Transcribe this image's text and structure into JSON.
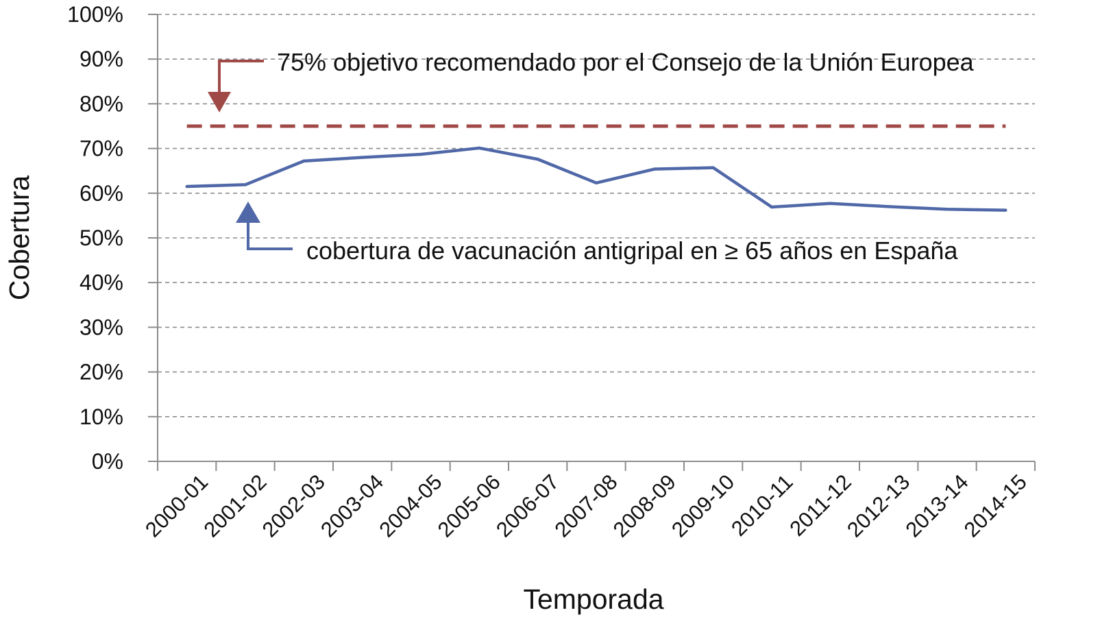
{
  "chart_data": {
    "type": "line",
    "xlabel": "Temporada",
    "ylabel": "Cobertura",
    "categories": [
      "2000-01",
      "2001-02",
      "2002-03",
      "2003-04",
      "2004-05",
      "2005-06",
      "2006-07",
      "2007-08",
      "2008-09",
      "2009-10",
      "2010-11",
      "2011-12",
      "2012-13",
      "2013-14",
      "2014-15"
    ],
    "y_ticks": [
      "0%",
      "10%",
      "20%",
      "30%",
      "40%",
      "50%",
      "60%",
      "70%",
      "80%",
      "90%",
      "100%"
    ],
    "ylim": [
      0,
      100
    ],
    "grid": true,
    "series": [
      {
        "values": [
          61.5,
          61.9,
          67.2,
          68.0,
          68.7,
          70.1,
          67.6,
          62.3,
          65.4,
          65.7,
          56.9,
          57.7,
          57.0,
          56.4,
          56.2
        ],
        "color": "#5068a8",
        "style": "solid"
      }
    ],
    "reference_line": {
      "value": 75,
      "color": "#a04a48",
      "style": "dashed"
    },
    "annotations": [
      {
        "text": "75% objetivo recomendado por el Consejo de la Unión Europea",
        "color": "#a04a48"
      },
      {
        "text": "cobertura de vacunación antigripal en ≥ 65 años en España",
        "color": "#5068a8"
      }
    ]
  }
}
